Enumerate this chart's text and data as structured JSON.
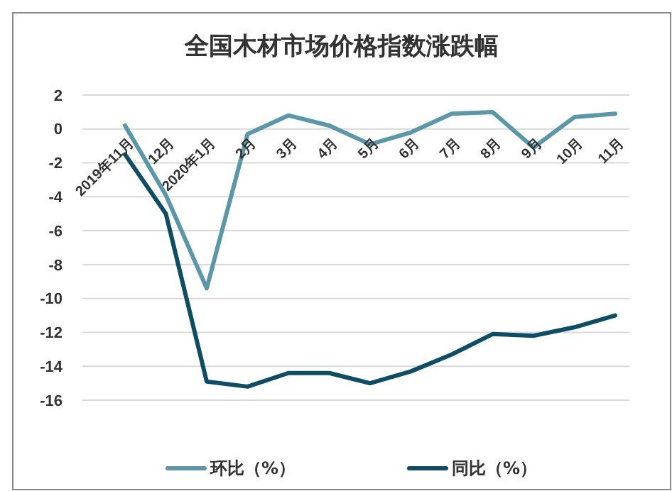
{
  "chart_data": {
    "type": "line",
    "title": "全国木材市场价格指数涨跌幅",
    "categories": [
      "2019年11月",
      "12月",
      "2020年1月",
      "2月",
      "3月",
      "4月",
      "5月",
      "6月",
      "7月",
      "8月",
      "9月",
      "10月",
      "11月"
    ],
    "series": [
      {
        "name": "环比（%）",
        "color": "#5b97a8",
        "values": [
          0.2,
          -3.9,
          -9.4,
          -0.3,
          0.8,
          0.2,
          -0.9,
          -0.2,
          0.9,
          1.0,
          -1.1,
          0.7,
          0.9
        ]
      },
      {
        "name": "同比（%）",
        "color": "#0e4d64",
        "values": [
          -1.5,
          -5.0,
          -14.9,
          -15.2,
          -14.4,
          -14.4,
          -15.0,
          -14.3,
          -13.3,
          -12.1,
          -12.2,
          -11.7,
          -11.0
        ]
      }
    ],
    "ylim": [
      -16,
      2
    ],
    "yticks": [
      -16,
      -14,
      -12,
      -10,
      -8,
      -6,
      -4,
      -2,
      0,
      2
    ],
    "grid": "y",
    "legend": "bottom",
    "marker": "none",
    "line_style": "solid"
  }
}
